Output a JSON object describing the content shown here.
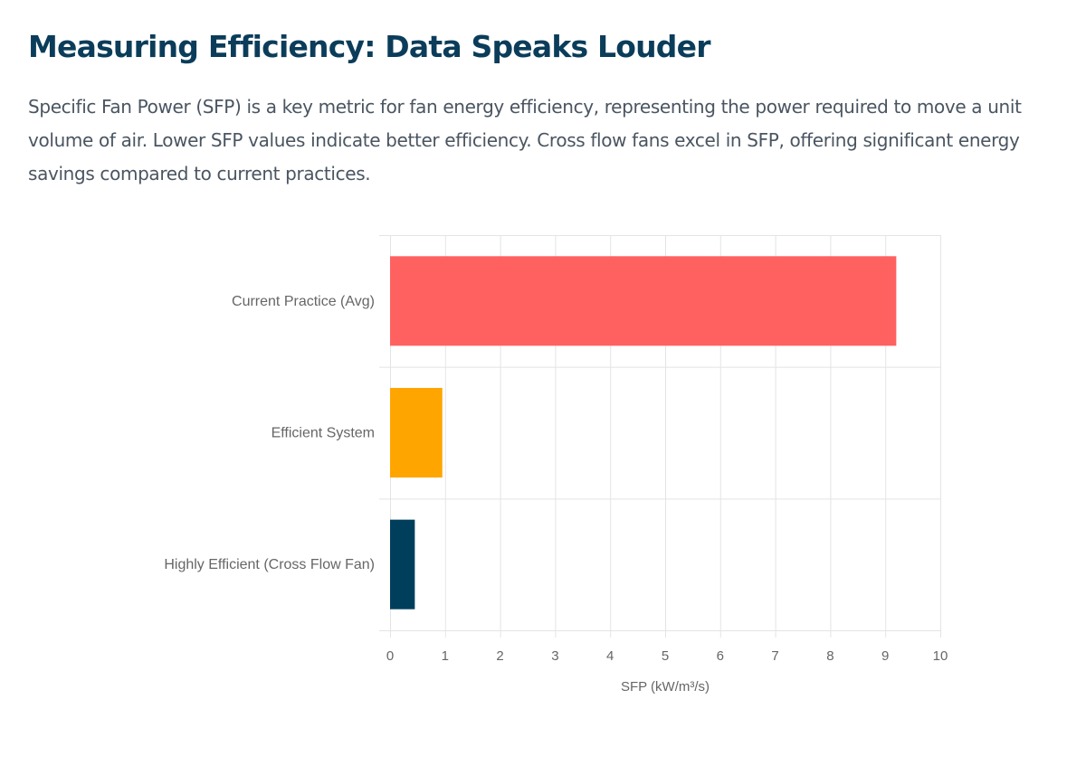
{
  "header": {
    "title": "Measuring Efficiency: Data Speaks Louder",
    "description": "Specific Fan Power (SFP) is a key metric for fan energy efficiency, representing the power required to move a unit volume of air. Lower SFP values indicate better efficiency. Cross flow fans excel in SFP, offering significant energy savings compared to current practices."
  },
  "chart_data": {
    "type": "bar",
    "orientation": "horizontal",
    "categories": [
      "Current Practice (Avg)",
      "Efficient System",
      "Highly Efficient (Cross Flow Fan)"
    ],
    "values": [
      9.2,
      0.95,
      0.45
    ],
    "colors": [
      "#ff6161",
      "#ffa500",
      "#003f5c"
    ],
    "title": "",
    "xlabel": "SFP (kW/m³/s)",
    "ylabel": "",
    "xlim": [
      0,
      10
    ],
    "x_ticks": [
      0,
      1,
      2,
      3,
      4,
      5,
      6,
      7,
      8,
      9,
      10
    ],
    "grid": true,
    "legend": "none"
  }
}
